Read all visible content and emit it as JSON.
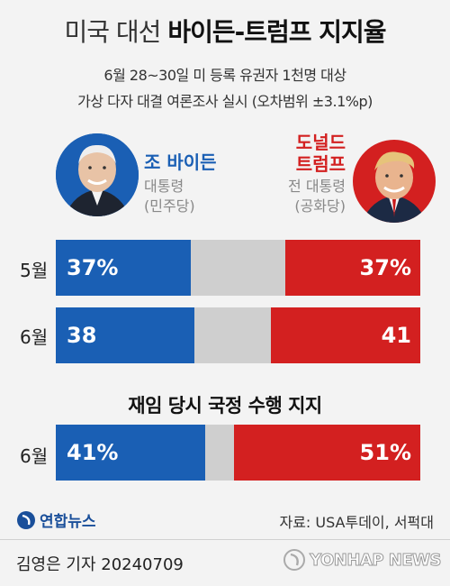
{
  "header": {
    "title_light": "미국 대선",
    "title_bold": "바이든-트럼프 지지율",
    "subtitle_line1": "6월 28~30일 미 등록 유권자 1천명 대상",
    "subtitle_line2": "가상 다자 대결 여론조사 실시 (오차범위 ±3.1%p)"
  },
  "candidates": {
    "left": {
      "name": "조 바이든",
      "title": "대통령",
      "party": "(민주당)",
      "color": "#1a5fb4"
    },
    "right": {
      "name_line1": "도널드",
      "name_line2": "트럼프",
      "title": "전 대통령",
      "party": "(공화당)",
      "color": "#d32020"
    }
  },
  "section_title": "재임 당시 국정 수행 지지",
  "source": "자료: USA투데이, 서퍽대",
  "logo_text": "연합뉴스",
  "byline": "김영은 기자  20240709",
  "watermark": "YONHAP NEWS",
  "chart_data": [
    {
      "type": "bar",
      "orientation": "horizontal-stacked",
      "title": "",
      "categories": [
        "5월",
        "6월"
      ],
      "series": [
        {
          "name": "조 바이든",
          "values": [
            37,
            38
          ],
          "labels": [
            "37%",
            "38"
          ]
        },
        {
          "name": "도널드 트럼프",
          "values": [
            37,
            41
          ],
          "labels": [
            "37%",
            "41"
          ]
        }
      ],
      "xlim": [
        0,
        100
      ]
    },
    {
      "type": "bar",
      "orientation": "horizontal-stacked",
      "title": "재임 당시 국정 수행 지지",
      "categories": [
        "6월"
      ],
      "series": [
        {
          "name": "조 바이든",
          "values": [
            41
          ],
          "labels": [
            "41%"
          ]
        },
        {
          "name": "도널드 트럼프",
          "values": [
            51
          ],
          "labels": [
            "51%"
          ]
        }
      ],
      "xlim": [
        0,
        100
      ]
    }
  ]
}
